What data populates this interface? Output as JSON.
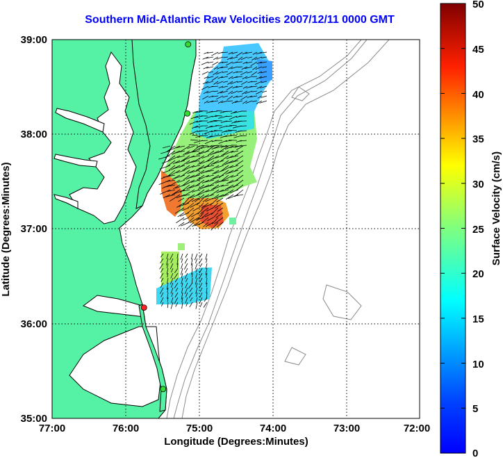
{
  "title": "Southern Mid-Atlantic Raw Velocities 2007/12/11 0000 GMT",
  "map": {
    "xlabel": "Longitude (Degrees:Minutes)",
    "ylabel": "Latitude (Degrees:Minutes)",
    "x_ticks": [
      "77:00",
      "76:00",
      "75:00",
      "74:00",
      "73:00",
      "72:00"
    ],
    "y_ticks": [
      "39:00",
      "38:00",
      "37:00",
      "36:00",
      "35:00"
    ],
    "lon_range": [
      -77,
      -72
    ],
    "lat_range": [
      35,
      39
    ],
    "land_color": "#55f2a6",
    "water_color": "#ffffff",
    "bathymetry_color": "#8a8a8a"
  },
  "colorbar": {
    "label": "Surface Velocity (cm/s)",
    "ticks": [
      "50",
      "45",
      "40",
      "35",
      "30",
      "25",
      "20",
      "15",
      "10",
      "5",
      "0"
    ],
    "range": [
      0,
      50
    ],
    "colormap": "jet"
  },
  "stations": [
    {
      "lat": 38.95,
      "lon": -75.15,
      "color": "#33dd33"
    },
    {
      "lat": 38.22,
      "lon": -75.16,
      "color": "#33dd33"
    },
    {
      "lat": 36.17,
      "lon": -75.75,
      "color": "#ff2222"
    },
    {
      "lat": 35.31,
      "lon": -75.49,
      "color": "#33dd33"
    }
  ]
}
